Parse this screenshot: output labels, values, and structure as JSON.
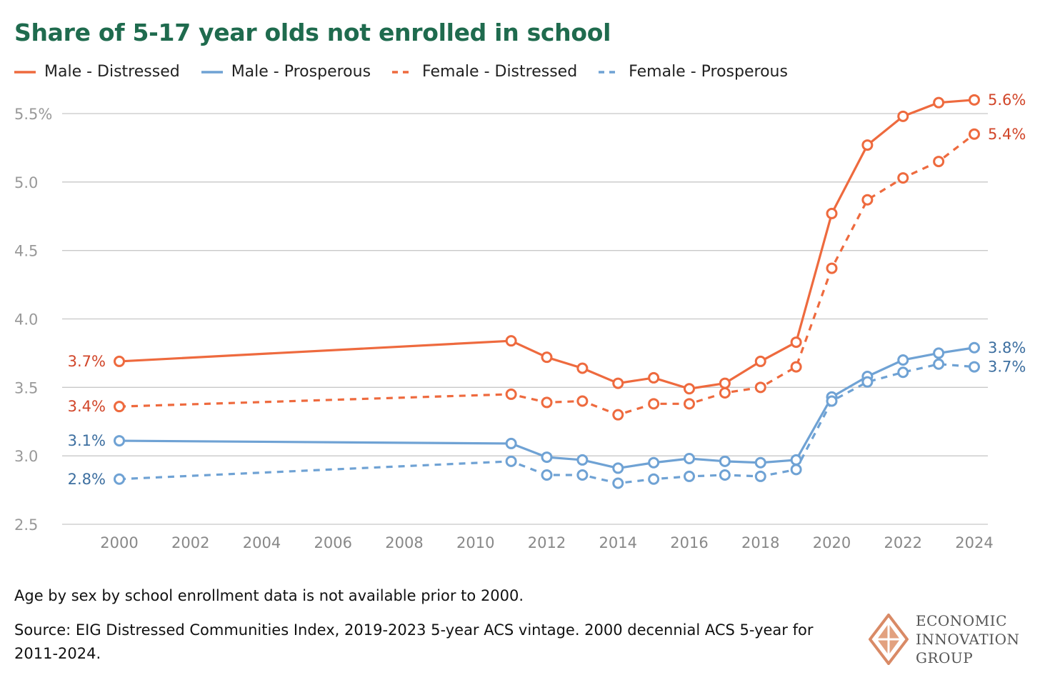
{
  "chart_data": {
    "type": "line",
    "title": "Share of 5-17 year olds not enrolled in school",
    "xlabel": "",
    "ylabel": "",
    "ylim": [
      2.5,
      5.5
    ],
    "xlim": [
      2000,
      2024
    ],
    "yticks": [
      2.5,
      3.0,
      3.5,
      4.0,
      4.5,
      5.0,
      5.5
    ],
    "ytick_labels": [
      "2.5",
      "3.0",
      "3.5",
      "4.0",
      "4.5",
      "5.0",
      "5.5%"
    ],
    "xticks": [
      2000,
      2002,
      2004,
      2006,
      2008,
      2010,
      2012,
      2014,
      2016,
      2018,
      2020,
      2022,
      2024
    ],
    "xtick_labels": [
      "2000",
      "2002",
      "2004",
      "2006",
      "2008",
      "2010",
      "2012",
      "2014",
      "2016",
      "2018",
      "2020",
      "2022",
      "2024"
    ],
    "grid": true,
    "legend_position": "top-left",
    "x": [
      2000,
      2011,
      2012,
      2013,
      2014,
      2015,
      2016,
      2017,
      2018,
      2019,
      2020,
      2021,
      2022,
      2023,
      2024
    ],
    "series": [
      {
        "name": "Male - Distressed",
        "color": "#ee6a3e",
        "label_color": "#d1462a",
        "dashed": false,
        "values": [
          3.69,
          3.84,
          3.72,
          3.64,
          3.53,
          3.57,
          3.49,
          3.53,
          3.69,
          3.83,
          4.77,
          5.27,
          5.48,
          5.58,
          5.6
        ],
        "start_label": "3.7%",
        "end_label": "5.6%"
      },
      {
        "name": "Male - Prosperous",
        "color": "#6fa2d4",
        "label_color": "#3d6fa0",
        "dashed": false,
        "values": [
          3.11,
          3.09,
          2.99,
          2.97,
          2.91,
          2.95,
          2.98,
          2.96,
          2.95,
          2.97,
          3.43,
          3.58,
          3.7,
          3.75,
          3.79
        ],
        "start_label": "3.1%",
        "end_label": "3.8%"
      },
      {
        "name": "Female - Distressed",
        "color": "#ee6a3e",
        "label_color": "#d1462a",
        "dashed": true,
        "values": [
          3.36,
          3.45,
          3.39,
          3.4,
          3.3,
          3.38,
          3.38,
          3.46,
          3.5,
          3.65,
          4.37,
          4.87,
          5.03,
          5.15,
          5.35
        ],
        "start_label": "3.4%",
        "end_label": "5.4%"
      },
      {
        "name": "Female - Prosperous",
        "color": "#6fa2d4",
        "label_color": "#3d6fa0",
        "dashed": true,
        "values": [
          2.83,
          2.96,
          2.86,
          2.86,
          2.8,
          2.83,
          2.85,
          2.86,
          2.85,
          2.9,
          3.4,
          3.54,
          3.61,
          3.67,
          3.65
        ],
        "start_label": "2.8%",
        "end_label": "3.7%"
      }
    ]
  },
  "notes": {
    "availability": "Age by sex by school enrollment data is not available prior to 2000.",
    "source": "Source: EIG Distressed Communities Index, 2019-2023 5-year ACS vintage. 2000 decennial ACS 5-year for 2011-2024."
  },
  "logo": {
    "lines": [
      "ECONOMIC",
      "INNOVATION",
      "GROUP"
    ]
  }
}
